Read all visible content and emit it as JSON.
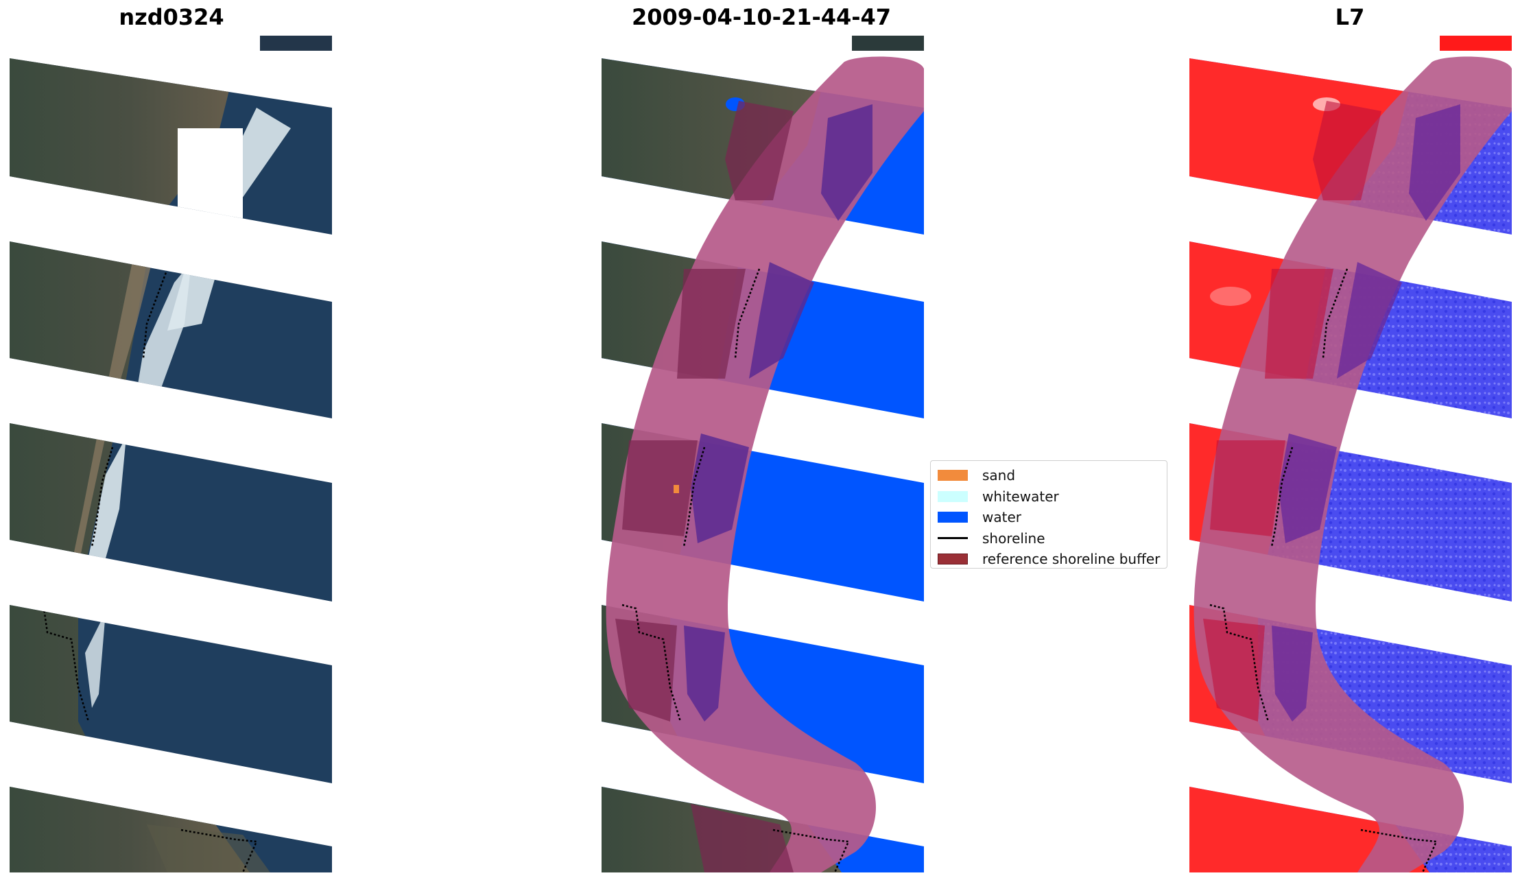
{
  "panels": [
    {
      "title": "nzd0324",
      "kind": "rgb"
    },
    {
      "title": "2009-04-10-21-44-47",
      "kind": "classified"
    },
    {
      "title": "L7",
      "kind": "index"
    }
  ],
  "legend": {
    "items": [
      {
        "label": "sand",
        "color": "#f28b3c"
      },
      {
        "label": "whitewater",
        "color": "#ccffff"
      },
      {
        "label": "water",
        "color": "#0055ff"
      },
      {
        "label": "shoreline",
        "color": "#000000"
      },
      {
        "label": "reference shoreline buffer",
        "color": "#9a2f36"
      }
    ]
  },
  "colors": {
    "land_dark": "#3b4a3c",
    "land_brown": "#7a6b55",
    "ocean": "#1f3e5e",
    "surf": "#e6f0f5",
    "water": "#0055ff",
    "buffer": "#b65a8a",
    "index_land": "#ff2a2a",
    "index_water": "#4a4cf0"
  }
}
